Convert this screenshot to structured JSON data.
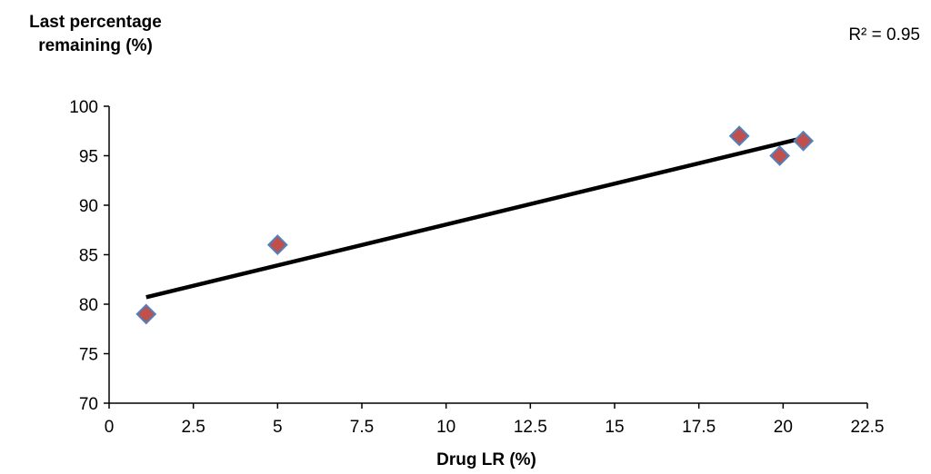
{
  "chart_data": {
    "type": "scatter",
    "ylabel_lines": [
      "Last percentage",
      "remaining (%)"
    ],
    "xlabel": "Drug LR (%)",
    "annotation": "R² = 0.95",
    "xlim": [
      0,
      22.5
    ],
    "ylim": [
      70,
      100
    ],
    "x_ticks": [
      "0",
      "2.5",
      "5",
      "7.5",
      "10",
      "12.5",
      "15",
      "17.5",
      "20",
      "22.5"
    ],
    "y_ticks": [
      "70",
      "75",
      "80",
      "85",
      "90",
      "95",
      "100"
    ],
    "grid": false,
    "legend": "none",
    "points": [
      {
        "x": 1.1,
        "y": 79.0
      },
      {
        "x": 5.0,
        "y": 86.0
      },
      {
        "x": 18.7,
        "y": 97.0
      },
      {
        "x": 19.9,
        "y": 95.0
      },
      {
        "x": 20.6,
        "y": 96.5
      }
    ],
    "trendline": {
      "x": [
        1.1,
        20.6
      ],
      "y": [
        80.7,
        96.8
      ]
    },
    "colors": {
      "marker_fill": "#c0504d",
      "marker_edge": "#4f81bd",
      "line": "#000000",
      "axis": "#000000"
    }
  }
}
